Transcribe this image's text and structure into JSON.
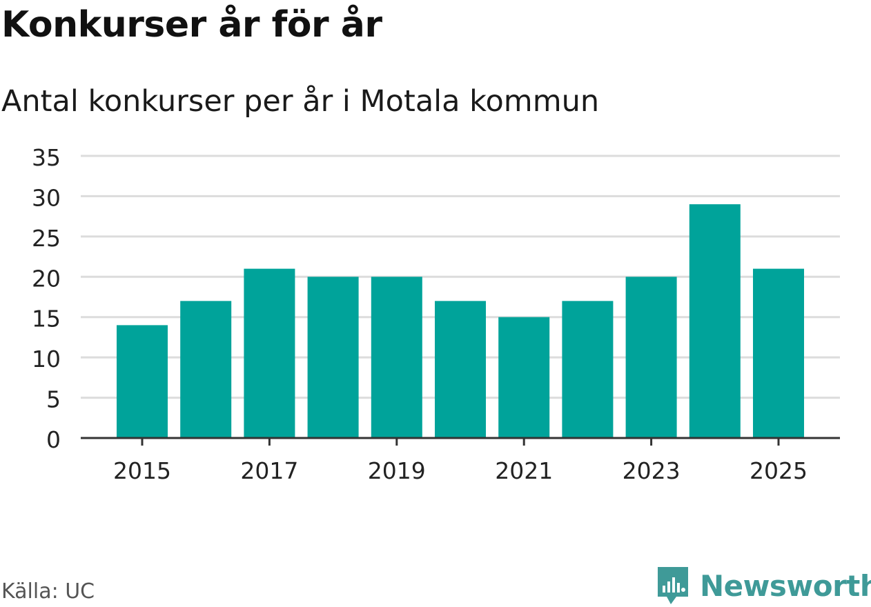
{
  "colors": {
    "bar": "#00a39a",
    "grid": "#dcdcdc",
    "axis": "#333333",
    "brand": "#3f9a98"
  },
  "header": {
    "title": "Konkurser år för år",
    "subtitle": "Antal konkurser per år i Motala kommun"
  },
  "footer": {
    "source": "Källa: UC",
    "brand": "Newsworthy",
    "brand_icon": "newsworthy-logo-icon"
  },
  "chart_data": {
    "type": "bar",
    "title": "Konkurser år för år",
    "subtitle": "Antal konkurser per år i Motala kommun",
    "xlabel": "",
    "ylabel": "",
    "categories": [
      "2015",
      "2016",
      "2017",
      "2018",
      "2019",
      "2020",
      "2021",
      "2022",
      "2023",
      "2024",
      "2025"
    ],
    "values": [
      14,
      17,
      21,
      20,
      20,
      17,
      15,
      17,
      20,
      29,
      21
    ],
    "x_tick_labels": [
      "2015",
      "2017",
      "2019",
      "2021",
      "2023",
      "2025"
    ],
    "y_ticks": [
      0,
      5,
      10,
      15,
      20,
      25,
      30,
      35
    ],
    "ylim": [
      0,
      35
    ],
    "grid": true,
    "legend": "none"
  }
}
